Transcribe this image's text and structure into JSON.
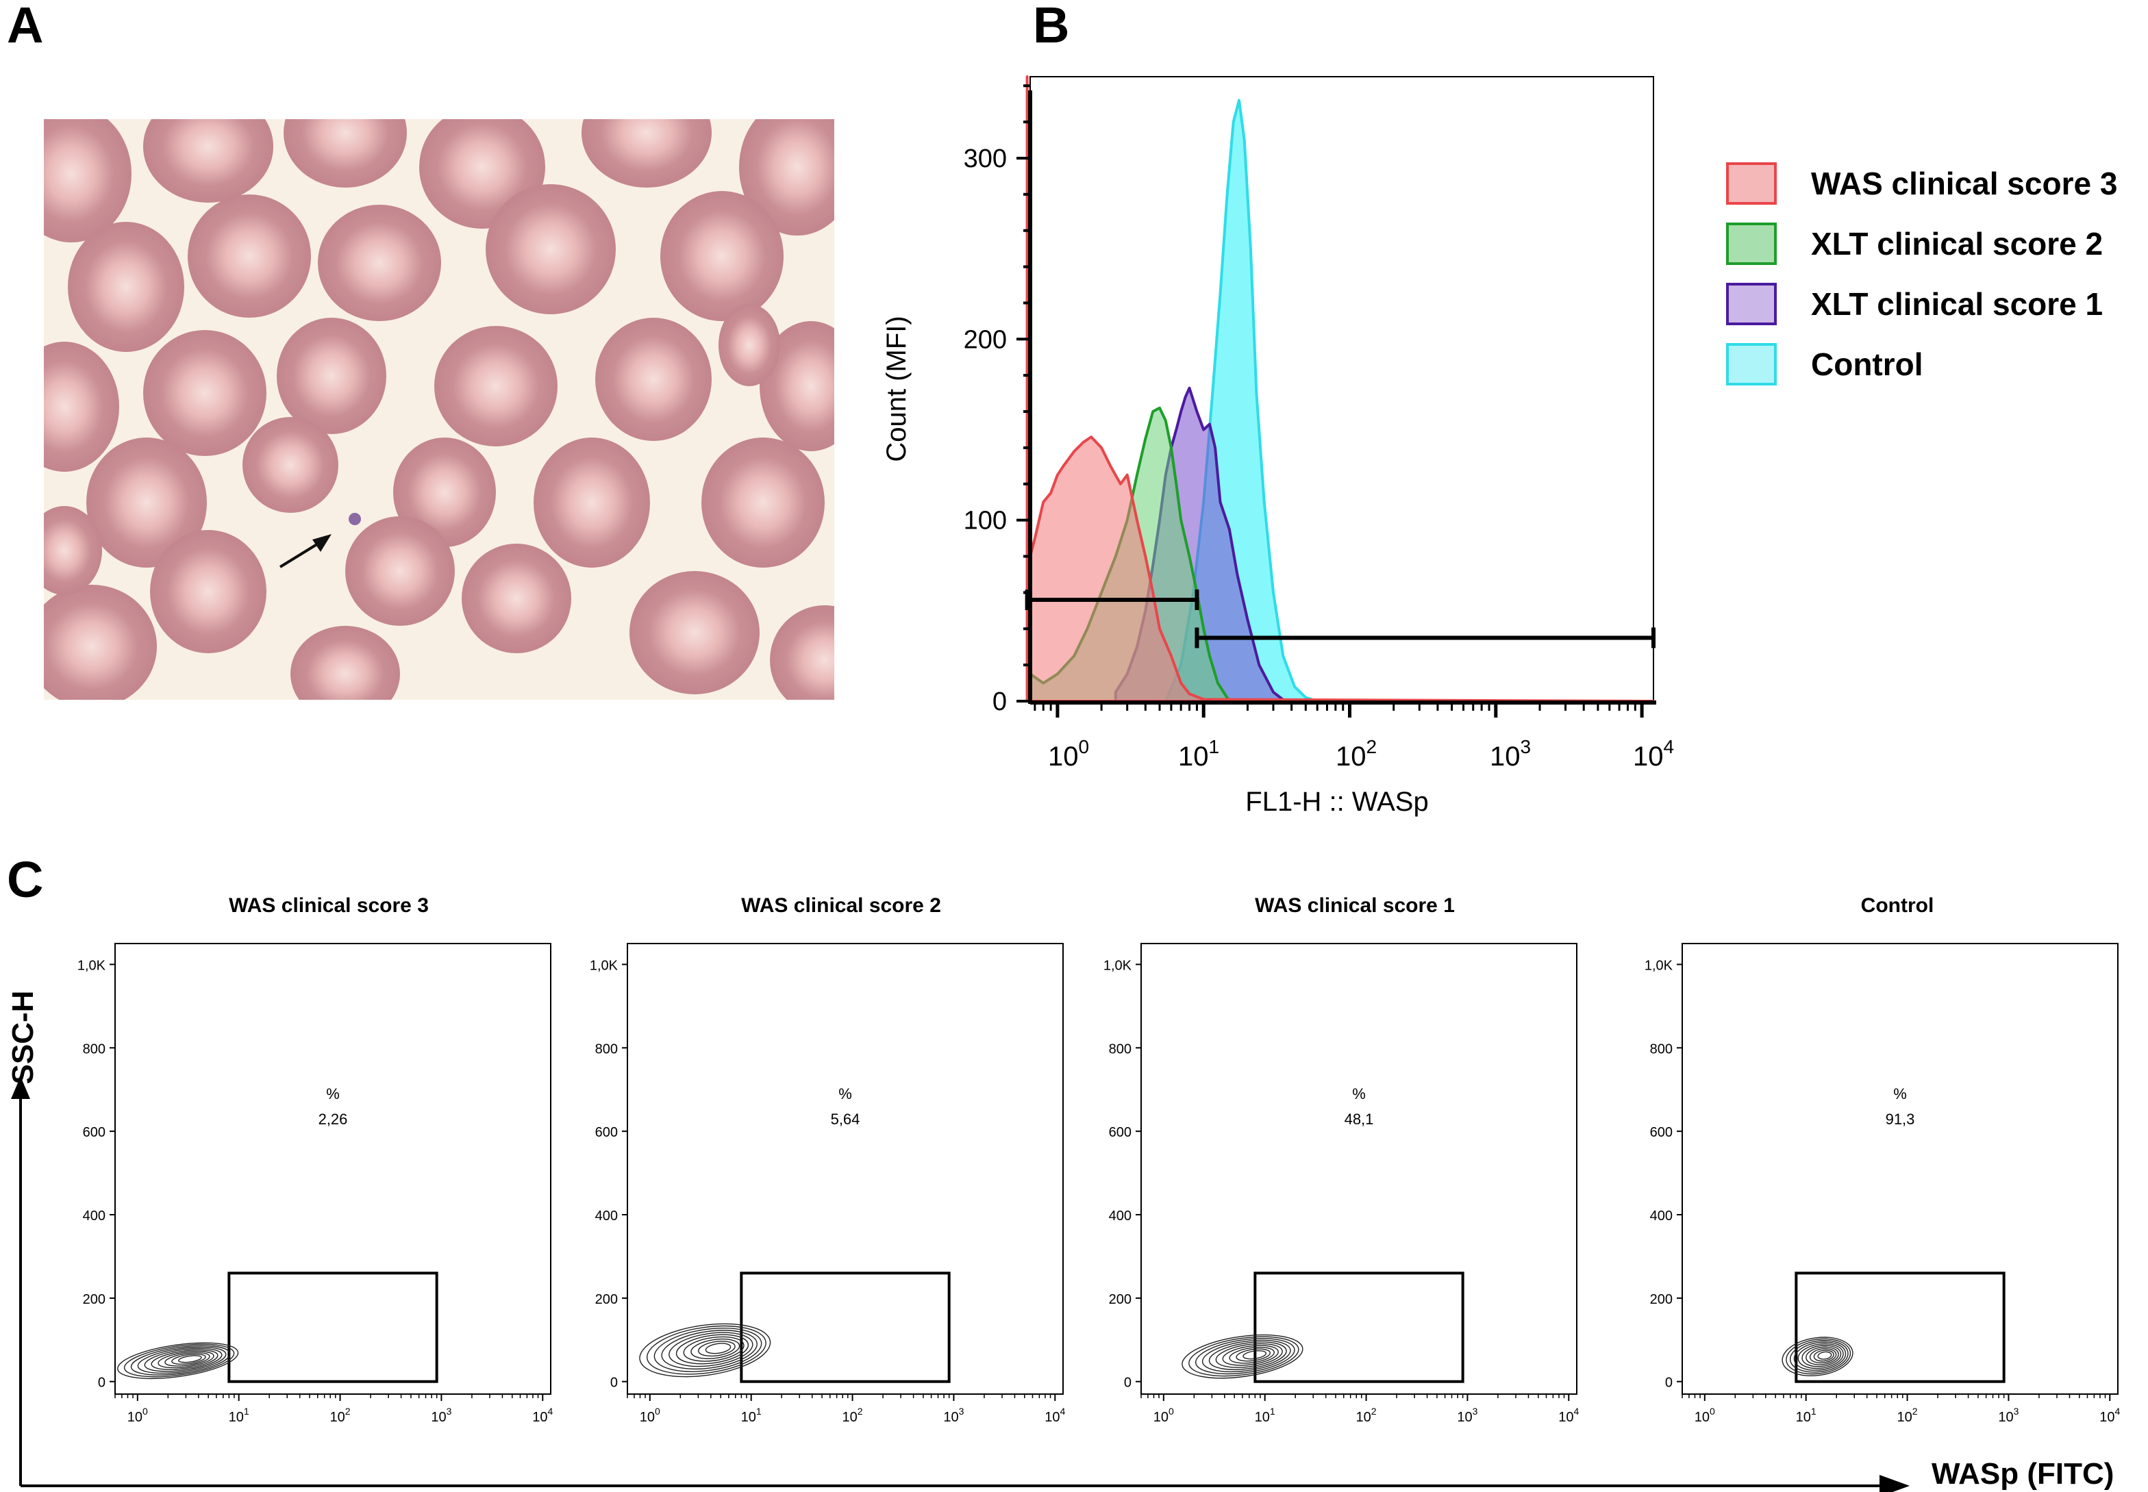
{
  "panel_labels": {
    "a": "A",
    "b": "B",
    "c": "C"
  },
  "panel_a": {
    "image": "blood-smear-micrograph",
    "arrow": "arrow-pointing-to-microplatelet"
  },
  "chart_data": [
    {
      "type": "area",
      "panel": "B",
      "title": "",
      "xlabel": "FL1-H :: WASp",
      "ylabel": "Count (MFI)",
      "x_scale": "log",
      "xlim": [
        0.65,
        12000
      ],
      "ylim": [
        0,
        345
      ],
      "x_ticks": [
        {
          "base": "10",
          "exp": "0",
          "value": 1
        },
        {
          "base": "10",
          "exp": "1",
          "value": 10
        },
        {
          "base": "10",
          "exp": "2",
          "value": 100
        },
        {
          "base": "10",
          "exp": "3",
          "value": 1000
        },
        {
          "base": "10",
          "exp": "4",
          "value": 10000
        }
      ],
      "y_ticks": [
        "0",
        "100",
        "200",
        "300"
      ],
      "y_tick_values": [
        0,
        100,
        200,
        300
      ],
      "series": [
        {
          "name": "Control",
          "stroke": "#2fdce8",
          "fill": "#22f0f8",
          "x": [
            5.5,
            7,
            8.5,
            10,
            11.5,
            13,
            14.5,
            16,
            17.5,
            19,
            21,
            23,
            26,
            30,
            35,
            42,
            50,
            60
          ],
          "y": [
            0,
            20,
            60,
            110,
            170,
            225,
            280,
            320,
            332,
            310,
            250,
            170,
            110,
            60,
            25,
            8,
            2,
            0
          ]
        },
        {
          "name": "XLT clinical score 1",
          "stroke": "#4b1b9f",
          "fill": "#7a4fd0",
          "x": [
            2.5,
            3,
            3.5,
            4,
            4.5,
            5,
            5.5,
            6,
            6.5,
            7,
            7.5,
            8,
            9,
            10,
            11,
            12,
            13,
            15,
            17,
            20,
            24,
            30,
            36
          ],
          "y": [
            5,
            15,
            30,
            50,
            75,
            100,
            125,
            140,
            150,
            160,
            168,
            173,
            160,
            150,
            153,
            140,
            110,
            95,
            70,
            45,
            20,
            5,
            0
          ]
        },
        {
          "name": "XLT clinical score 2",
          "stroke": "#1f9e2b",
          "fill": "#6ed27a",
          "x": [
            0.65,
            0.8,
            1,
            1.3,
            1.6,
            2,
            2.5,
            3,
            3.5,
            4,
            4.5,
            5,
            5.5,
            6,
            6.5,
            7,
            8,
            9,
            10,
            11,
            12.5,
            15
          ],
          "y": [
            15,
            10,
            15,
            25,
            40,
            60,
            80,
            100,
            125,
            145,
            160,
            162,
            155,
            140,
            120,
            100,
            80,
            60,
            40,
            25,
            10,
            0
          ]
        },
        {
          "name": "WAS clinical score 3",
          "stroke": "#e8474b",
          "fill": "#f27a7c",
          "x": [
            0.62,
            0.63,
            0.65,
            0.7,
            0.8,
            0.9,
            1,
            1.1,
            1.3,
            1.5,
            1.7,
            2,
            2.3,
            2.7,
            3,
            3.5,
            4,
            4.5,
            5,
            6,
            7,
            8,
            10,
            12000
          ],
          "y": [
            345,
            60,
            80,
            90,
            110,
            115,
            125,
            130,
            138,
            143,
            146,
            140,
            130,
            120,
            125,
            100,
            80,
            60,
            40,
            25,
            10,
            4,
            1,
            0
          ]
        }
      ],
      "gates": [
        {
          "from": 0.62,
          "to": 9.0,
          "y": 56
        },
        {
          "from": 9.0,
          "to": 12000,
          "y": 35
        }
      ],
      "legend_position": "right",
      "legend": [
        {
          "label": "WAS clinical score 3",
          "color": "#f5b8b8",
          "border": "#e8474b"
        },
        {
          "label": "XLT clinical score 2",
          "color": "#a8dfae",
          "border": "#1f9e2b"
        },
        {
          "label": "XLT clinical score 1",
          "color": "#cbb8e8",
          "border": "#4b1b9f"
        },
        {
          "label": "Control",
          "color": "#aef5fa",
          "border": "#2fdce8"
        }
      ]
    },
    {
      "type": "contour",
      "panel": "C",
      "ylabel": "SSC-H",
      "xlabel": "WASp (FITC)",
      "x_scale": "log",
      "xlim": [
        0.6,
        12000
      ],
      "ylim": [
        -30,
        1050
      ],
      "y_ticks": [
        "0",
        "200",
        "400",
        "600",
        "800",
        "1,0K"
      ],
      "y_tick_values": [
        0,
        200,
        400,
        600,
        800,
        1000
      ],
      "x_ticks": [
        {
          "base": "10",
          "exp": "0",
          "value": 1
        },
        {
          "base": "10",
          "exp": "1",
          "value": 10
        },
        {
          "base": "10",
          "exp": "2",
          "value": 100
        },
        {
          "base": "10",
          "exp": "3",
          "value": 1000
        },
        {
          "base": "10",
          "exp": "4",
          "value": 10000
        }
      ],
      "gate": {
        "x": [
          8,
          900
        ],
        "y": [
          0,
          260
        ]
      },
      "plots": [
        {
          "title": "WAS clinical score 3",
          "pct_label": "%",
          "pct_value": "2,26",
          "cluster": {
            "x": 2.5,
            "y": 50,
            "width_decades": 0.6,
            "height": 38
          }
        },
        {
          "title": "WAS clinical score 2",
          "pct_label": "%",
          "pct_value": "5,64",
          "cluster": {
            "x": 3.5,
            "y": 75,
            "width_decades": 0.65,
            "height": 60
          }
        },
        {
          "title": "WAS clinical score 1",
          "pct_label": "%",
          "pct_value": "48,1",
          "cluster": {
            "x": 6,
            "y": 60,
            "width_decades": 0.6,
            "height": 48
          }
        },
        {
          "title": "Control",
          "pct_label": "%",
          "pct_value": "91,3",
          "cluster": {
            "x": 13,
            "y": 60,
            "width_decades": 0.35,
            "height": 45
          }
        }
      ]
    }
  ]
}
